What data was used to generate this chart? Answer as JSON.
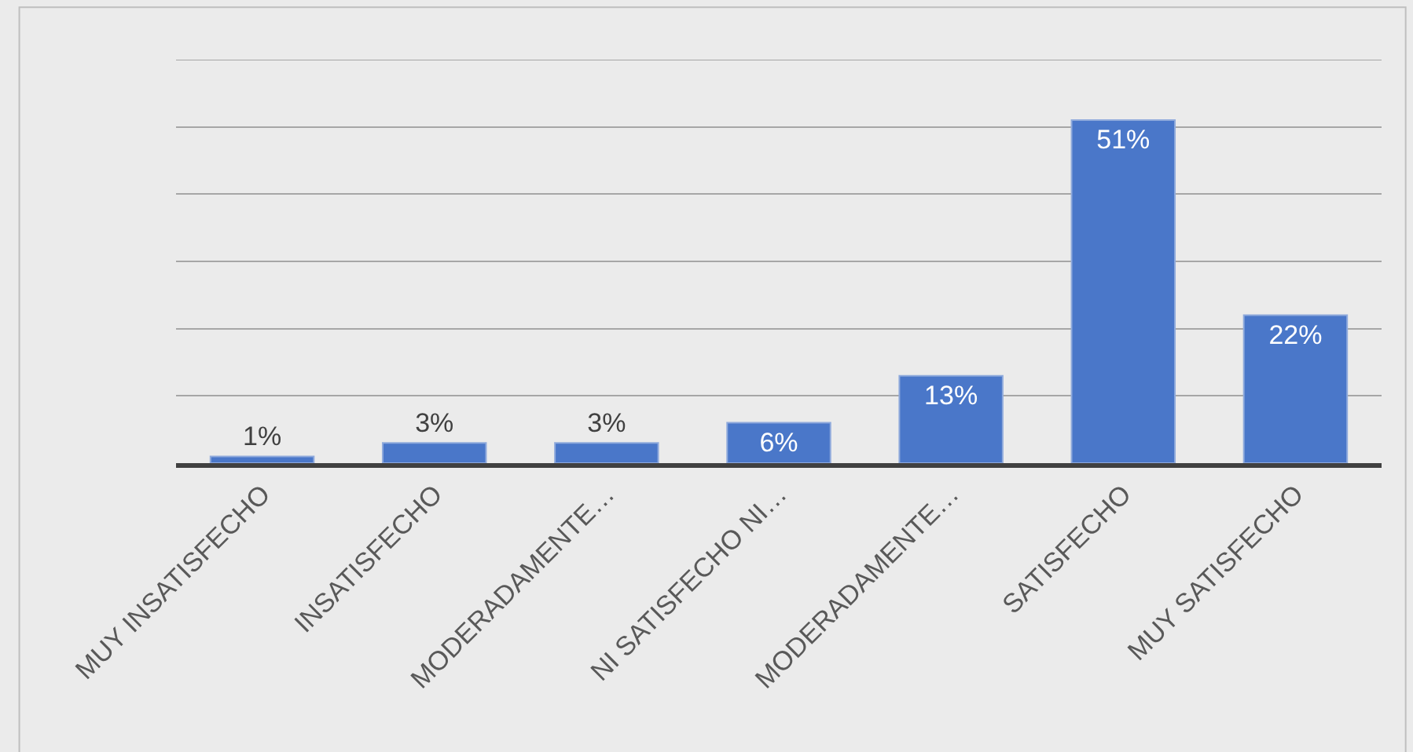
{
  "chart_data": {
    "type": "bar",
    "categories": [
      "MUY INSATISFECHO",
      "INSATISFECHO",
      "MODERADAMENTE…",
      "NI SATISFECHO NI…",
      "MODERADAMENTE…",
      "SATISFECHO",
      "MUY SATISFECHO"
    ],
    "values": [
      1,
      3,
      3,
      6,
      13,
      51,
      22
    ],
    "value_labels": [
      "1%",
      "3%",
      "3%",
      "6%",
      "13%",
      "51%",
      "22%"
    ],
    "color": "#4a77c9",
    "ylim": [
      0,
      60
    ],
    "yticks": [
      {
        "value": 0,
        "label": null
      },
      {
        "value": 10,
        "label": null
      },
      {
        "value": 20,
        "label": null
      },
      {
        "value": 30,
        "label": null
      },
      {
        "value": 40,
        "label": null
      },
      {
        "value": 50,
        "label": null
      },
      {
        "value": 60,
        "label": null
      }
    ],
    "grid": "y",
    "legend": false,
    "tick_labels": "x"
  }
}
